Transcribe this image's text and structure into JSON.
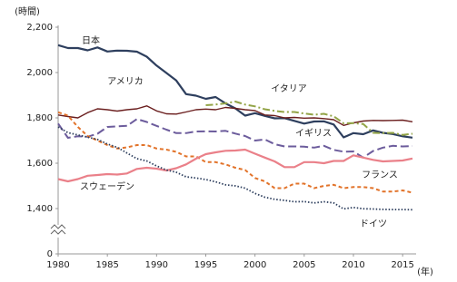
{
  "chart_data": {
    "type": "line",
    "y_label": "(時間)",
    "x_label": "(年)",
    "x": [
      1980,
      1981,
      1982,
      1983,
      1984,
      1985,
      1986,
      1987,
      1988,
      1989,
      1990,
      1991,
      1992,
      1993,
      1994,
      1995,
      1996,
      1997,
      1998,
      1999,
      2000,
      2001,
      2002,
      2003,
      2004,
      2005,
      2006,
      2007,
      2008,
      2009,
      2010,
      2011,
      2012,
      2013,
      2014,
      2015,
      2016
    ],
    "xlim": [
      1980,
      2016
    ],
    "xticks": [
      1980,
      1985,
      1990,
      1995,
      2000,
      2005,
      2010,
      2015
    ],
    "ylim": [
      0,
      2200
    ],
    "yticks": [
      0,
      {
        "value": 1400,
        "label": "1,400"
      },
      {
        "value": 1600,
        "label": "1,600"
      },
      {
        "value": 1800,
        "label": "1,800"
      },
      {
        "value": 2000,
        "label": "2,000"
      },
      {
        "value": 2200,
        "label": "2,200"
      }
    ],
    "axis_break": true,
    "grid": false,
    "series": [
      {
        "name": "日本",
        "color": "#2e3f5e",
        "style": "solid-thick",
        "values": [
          2121,
          2108,
          2108,
          2098,
          2111,
          2093,
          2097,
          2096,
          2092,
          2070,
          2031,
          1998,
          1965,
          1905,
          1898,
          1884,
          1892,
          1864,
          1842,
          1810,
          1821,
          1809,
          1798,
          1799,
          1787,
          1775,
          1784,
          1785,
          1771,
          1714,
          1733,
          1728,
          1745,
          1734,
          1729,
          1719,
          1713
        ]
      },
      {
        "name": "アメリカ",
        "color": "#6b1f1f",
        "style": "solid",
        "values": [
          1813,
          1806,
          1800,
          1823,
          1840,
          1836,
          1830,
          1836,
          1840,
          1853,
          1831,
          1818,
          1817,
          1826,
          1836,
          1839,
          1836,
          1846,
          1842,
          1836,
          1832,
          1813,
          1810,
          1800,
          1802,
          1799,
          1800,
          1797,
          1792,
          1767,
          1778,
          1786,
          1789,
          1788,
          1789,
          1790,
          1783
        ]
      },
      {
        "name": "イタリア",
        "color": "#93a447",
        "style": "dashdot",
        "values": [
          null,
          null,
          null,
          null,
          null,
          null,
          null,
          null,
          null,
          null,
          null,
          null,
          null,
          null,
          null,
          1856,
          1859,
          1864,
          1872,
          1859,
          1851,
          1838,
          1831,
          1826,
          1826,
          1819,
          1814,
          1818,
          1807,
          1776,
          1777,
          1773,
          1734,
          1733,
          1734,
          1725,
          1730
        ]
      },
      {
        "name": "イギリス",
        "color": "#6c5c9c",
        "style": "longdash",
        "values": [
          1775,
          1712,
          1719,
          1717,
          1730,
          1760,
          1763,
          1765,
          1795,
          1782,
          1765,
          1748,
          1733,
          1733,
          1740,
          1741,
          1740,
          1743,
          1731,
          1720,
          1700,
          1705,
          1684,
          1674,
          1674,
          1673,
          1669,
          1677,
          1659,
          1651,
          1652,
          1625,
          1654,
          1669,
          1677,
          1674,
          1676
        ]
      },
      {
        "name": "フランス",
        "color": "#e2732a",
        "style": "dash",
        "values": [
          1825,
          1810,
          1760,
          1720,
          1700,
          1680,
          1665,
          1670,
          1680,
          1680,
          1665,
          1660,
          1650,
          1630,
          1630,
          1605,
          1605,
          1595,
          1580,
          1570,
          1535,
          1520,
          1490,
          1490,
          1510,
          1510,
          1490,
          1500,
          1505,
          1490,
          1495,
          1495,
          1490,
          1475,
          1475,
          1480,
          1470
        ]
      },
      {
        "name": "スウェーデン",
        "color": "#ea8089",
        "style": "solid-thick",
        "values": [
          1530,
          1520,
          1530,
          1545,
          1548,
          1552,
          1550,
          1555,
          1575,
          1580,
          1576,
          1568,
          1578,
          1595,
          1620,
          1640,
          1648,
          1655,
          1656,
          1660,
          1642,
          1625,
          1608,
          1583,
          1583,
          1605,
          1605,
          1600,
          1610,
          1610,
          1635,
          1625,
          1615,
          1608,
          1610,
          1612,
          1621
        ]
      },
      {
        "name": "ドイツ",
        "color": "#2e3f5e",
        "style": "dot",
        "values": [
          1760,
          1735,
          1725,
          1715,
          1705,
          1685,
          1670,
          1645,
          1620,
          1610,
          1588,
          1570,
          1560,
          1540,
          1535,
          1528,
          1518,
          1505,
          1500,
          1490,
          1467,
          1450,
          1441,
          1436,
          1430,
          1431,
          1425,
          1430,
          1425,
          1390,
          1405,
          1395,
          1385,
          1375,
          1370,
          1370,
          1363
        ]
      }
    ]
  }
}
